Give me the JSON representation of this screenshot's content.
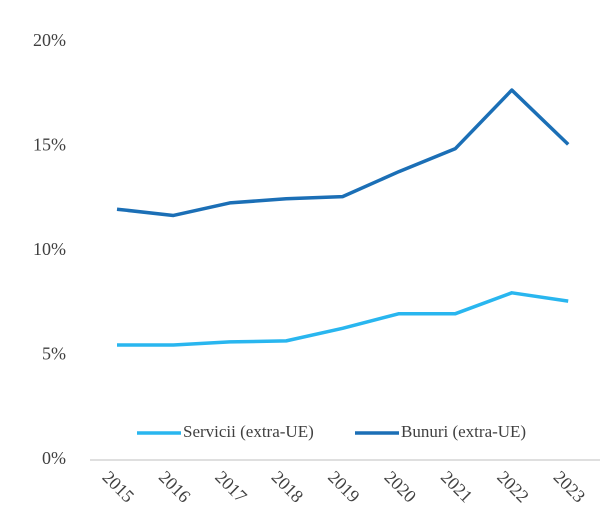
{
  "chart_data": {
    "type": "line",
    "categories": [
      "2015",
      "2016",
      "2017",
      "2018",
      "2019",
      "2020",
      "2021",
      "2022",
      "2023"
    ],
    "series": [
      {
        "name": "Servicii (extra-UE)",
        "color": "#29b6ef",
        "values": [
          5.5,
          5.5,
          5.65,
          5.7,
          6.3,
          7.0,
          7.0,
          8.0,
          7.6
        ]
      },
      {
        "name": "Bunuri (extra-UE)",
        "color": "#1b6fb6",
        "values": [
          12.0,
          11.7,
          12.3,
          12.5,
          12.6,
          13.8,
          14.9,
          17.7,
          15.1
        ]
      }
    ],
    "ylim": [
      0,
      20
    ],
    "yticks": [
      {
        "value": 0,
        "label": "0%"
      },
      {
        "value": 5,
        "label": "5%"
      },
      {
        "value": 10,
        "label": "10%"
      },
      {
        "value": 15,
        "label": "15%"
      },
      {
        "value": 20,
        "label": "20%"
      }
    ],
    "grid": false,
    "legend": "bottom"
  }
}
